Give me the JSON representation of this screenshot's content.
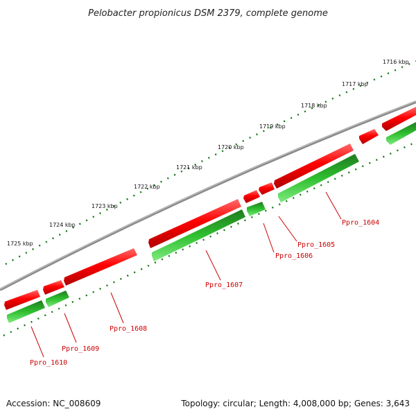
{
  "title": "Pelobacter propionicus DSM 2379, complete genome",
  "ticks": [
    "1716 kbp",
    "1717 kbp",
    "1718 kbp",
    "1719 kbp",
    "1720 kbp",
    "1721 kbp",
    "1722 kbp",
    "1723 kbp",
    "1724 kbp",
    "1725 kbp"
  ],
  "genes": [
    "Ppro_1604",
    "Ppro_1605",
    "Ppro_1606",
    "Ppro_1607",
    "Ppro_1608",
    "Ppro_1609",
    "Ppro_1610"
  ],
  "footer": {
    "accession": "Accession: NC_008609",
    "stats": "Topology: circular; Length: 4,008,000 bp; Genes: 3,643"
  },
  "colors": {
    "forward_strand": "#ee0000",
    "reverse_strand": "#22aa22",
    "backbone": "#888888",
    "ticks": "#117711",
    "labels": "#cc0000"
  }
}
